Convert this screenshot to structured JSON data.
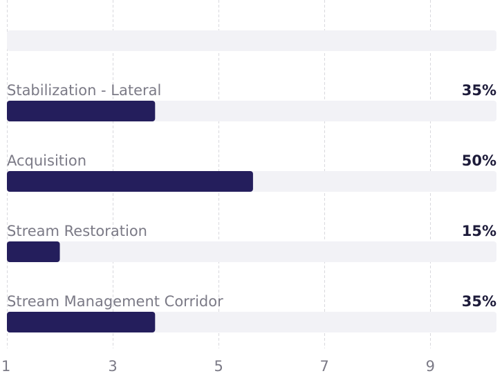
{
  "chart_data": {
    "type": "bar",
    "orientation": "horizontal",
    "categories": [
      "",
      "Stabilization - Lateral",
      "Acquisition",
      "Stream Restoration",
      "Stream Management Corridor"
    ],
    "values": [
      null,
      3.8,
      5.65,
      2.0,
      3.8
    ],
    "value_labels": [
      "",
      "35%",
      "50%",
      "15%",
      "35%"
    ],
    "xlim": [
      1,
      10.25
    ],
    "xticks": [
      1,
      3,
      5,
      7,
      9
    ],
    "tick_labels": [
      "1",
      "3",
      "5",
      "7",
      "9"
    ],
    "grid": true,
    "colors": {
      "bar": "#241e5c",
      "track": "#f2f2f6",
      "grid": "#d8d8dd",
      "category_text": "#7b7a86",
      "value_text": "#1d1b3a"
    }
  }
}
